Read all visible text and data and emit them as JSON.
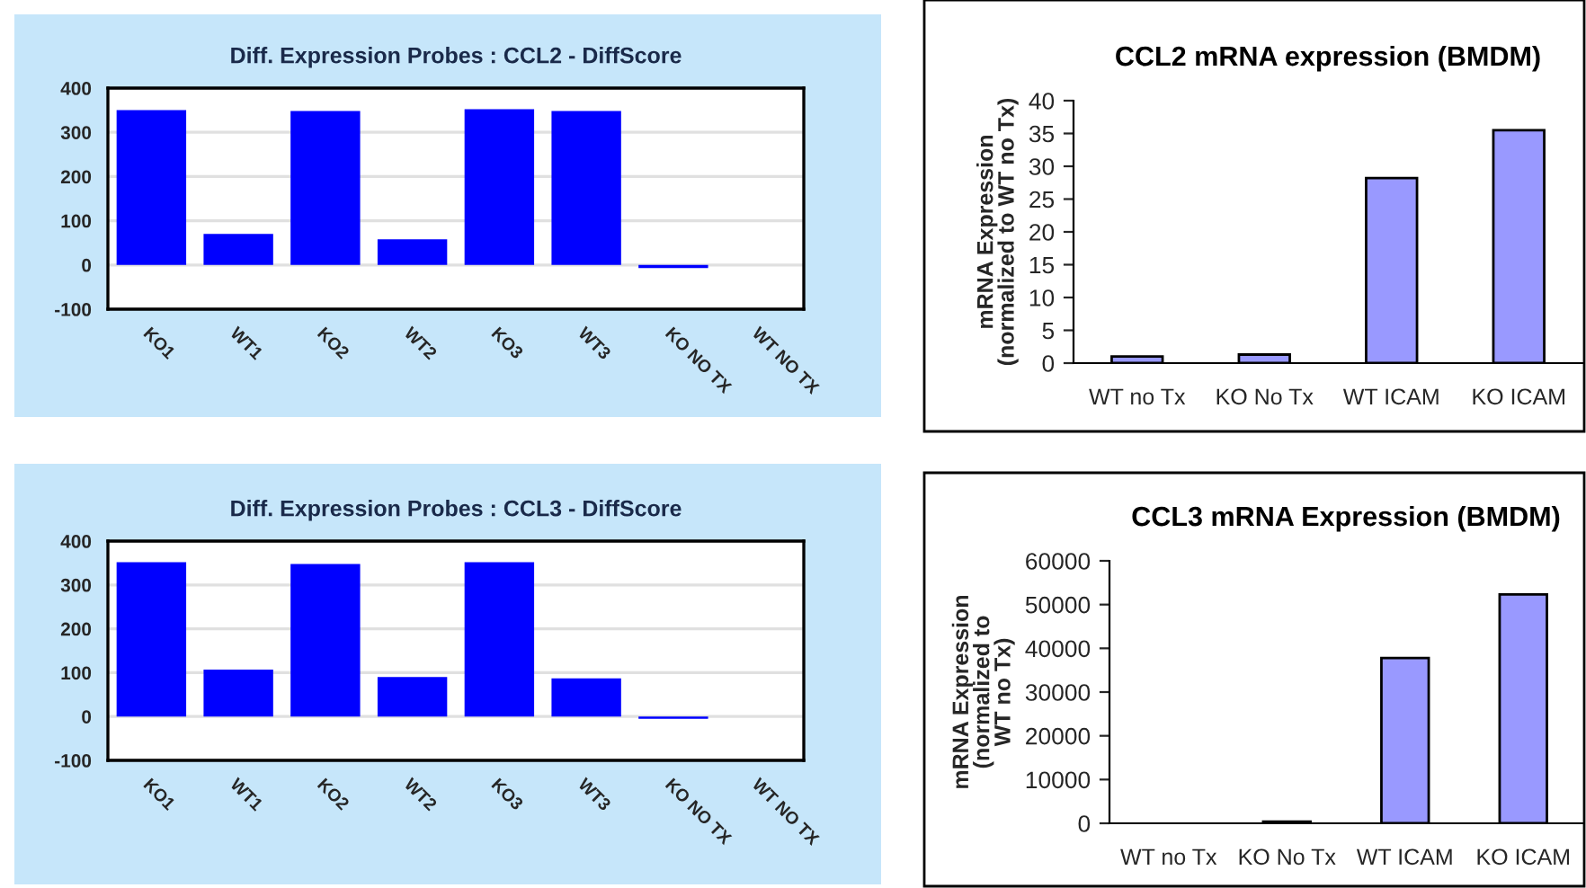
{
  "chart_data": [
    {
      "type": "bar",
      "title": "Diff. Expression Probes : CCL2 - DiffScore",
      "categories": [
        "KO1",
        "WT1",
        "KO2",
        "WT2",
        "KO3",
        "WT3",
        "KO NO TX",
        "WT NO TX"
      ],
      "series": [
        {
          "color": "#0000ff",
          "values": [
            350,
            70,
            348,
            58,
            352,
            348,
            -7,
            0
          ]
        }
      ],
      "ylim": [
        -100,
        400
      ],
      "yticks": [
        -100,
        0,
        100,
        200,
        300,
        400
      ],
      "grid": "y"
    },
    {
      "type": "bar",
      "title": "CCL2 mRNA expression (BMDM)",
      "ylabel": "mRNA Expression\n(normalized to WT no Tx)",
      "categories": [
        "WT no Tx",
        "KO No Tx",
        "WT ICAM",
        "KO ICAM"
      ],
      "series": [
        {
          "color": "#9999ff",
          "values": [
            1,
            1.3,
            28.2,
            35.5
          ]
        }
      ],
      "ylim": [
        0,
        40
      ],
      "yticks": [
        0,
        5,
        10,
        15,
        20,
        25,
        30,
        35,
        40
      ]
    },
    {
      "type": "bar",
      "title": "Diff. Expression Probes : CCL3 - DiffScore",
      "categories": [
        "KO1",
        "WT1",
        "KO2",
        "WT2",
        "KO3",
        "WT3",
        "KO NO TX",
        "WT NO TX"
      ],
      "series": [
        {
          "color": "#0000ff",
          "values": [
            352,
            107,
            348,
            90,
            352,
            87,
            -5,
            0
          ]
        }
      ],
      "ylim": [
        -100,
        400
      ],
      "yticks": [
        -100,
        0,
        100,
        200,
        300,
        400
      ],
      "grid": "y"
    },
    {
      "type": "bar",
      "title": "CCL3 mRNA Expression (BMDM)",
      "ylabel": "mRNA Expression\n(normalized to\nWT no Tx)",
      "categories": [
        "WT no Tx",
        "KO No Tx",
        "WT ICAM",
        "KO ICAM"
      ],
      "series": [
        {
          "color": "#9999ff",
          "values": [
            null,
            400,
            37800,
            52300
          ]
        }
      ],
      "ylim": [
        0,
        60000
      ],
      "yticks": [
        0,
        10000,
        20000,
        30000,
        40000,
        50000,
        60000
      ]
    }
  ]
}
